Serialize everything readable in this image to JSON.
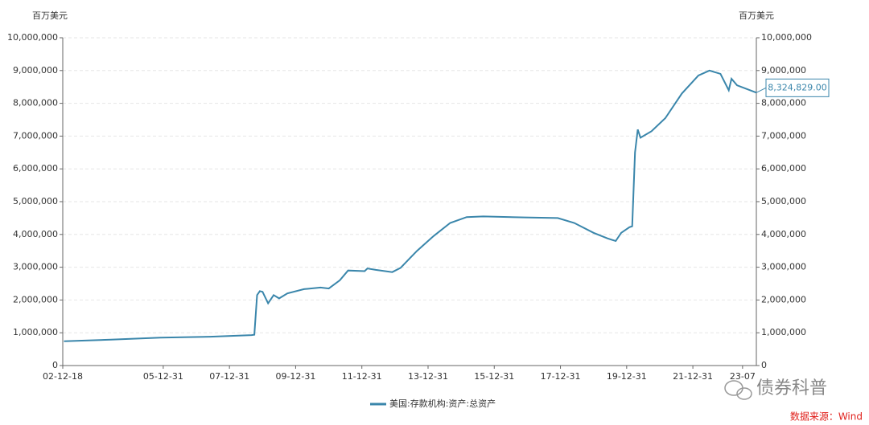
{
  "chart_data": {
    "type": "line",
    "y_label": "百万美元",
    "y2_label": "百万美元",
    "x": [
      "2003-01",
      "2004-06",
      "2005-12",
      "2007-06",
      "2008-09",
      "2008-10",
      "2008-11",
      "2008-12",
      "2009-01",
      "2009-03",
      "2009-05",
      "2009-07",
      "2009-10",
      "2010-04",
      "2010-10",
      "2011-01",
      "2011-05",
      "2011-08",
      "2012-02",
      "2012-03",
      "2012-06",
      "2012-12",
      "2013-03",
      "2013-09",
      "2014-03",
      "2014-09",
      "2015-03",
      "2015-09",
      "2016-12",
      "2017-12",
      "2018-06",
      "2019-01",
      "2019-06",
      "2019-09",
      "2019-11",
      "2020-02",
      "2020-03",
      "2020-04",
      "2020-05",
      "2020-06",
      "2020-10",
      "2021-03",
      "2021-09",
      "2022-03",
      "2022-07",
      "2022-11",
      "2023-02",
      "2023-03",
      "2023-05",
      "2023-12"
    ],
    "series": [
      {
        "name": "美国:存款机构:资产:总资产",
        "color": "#3a86ab",
        "values": [
          740000,
          790000,
          850000,
          880000,
          930000,
          940000,
          2150000,
          2270000,
          2250000,
          1900000,
          2150000,
          2050000,
          2200000,
          2330000,
          2380000,
          2350000,
          2600000,
          2900000,
          2880000,
          2960000,
          2920000,
          2850000,
          2980000,
          3500000,
          3950000,
          4350000,
          4530000,
          4550000,
          4520000,
          4500000,
          4350000,
          4050000,
          3880000,
          3800000,
          4050000,
          4220000,
          4250000,
          6500000,
          7200000,
          6950000,
          7150000,
          7550000,
          8300000,
          8850000,
          9000000,
          8900000,
          8400000,
          8750000,
          8550000,
          8324829
        ]
      }
    ],
    "annotation": {
      "x": "2023-12",
      "value": 8324829,
      "label": "8,324,829.00"
    },
    "xlim": [
      "2002-12-18",
      "2023-12"
    ],
    "xticks": [
      {
        "value": "2002-12-18",
        "label": "02-12-18"
      },
      {
        "value": "2005-12-31",
        "label": "05-12-31"
      },
      {
        "value": "2007-12-31",
        "label": "07-12-31"
      },
      {
        "value": "2009-12-31",
        "label": "09-12-31"
      },
      {
        "value": "2011-12-31",
        "label": "11-12-31"
      },
      {
        "value": "2013-12-31",
        "label": "13-12-31"
      },
      {
        "value": "2015-12-31",
        "label": "15-12-31"
      },
      {
        "value": "2017-12-31",
        "label": "17-12-31"
      },
      {
        "value": "2019-12-31",
        "label": "19-12-31"
      },
      {
        "value": "2021-12-31",
        "label": "21-12-31"
      },
      {
        "value": "2023-07",
        "label": "23-07"
      }
    ],
    "ylim": [
      0,
      10000000
    ],
    "yticks": [
      0,
      {
        "value": 1000000,
        "label": "1,000,000"
      },
      {
        "value": 2000000,
        "label": "2,000,000"
      },
      {
        "value": 3000000,
        "label": "3,000,000"
      },
      {
        "value": 4000000,
        "label": "4,000,000"
      },
      {
        "value": 5000000,
        "label": "5,000,000"
      },
      {
        "value": 6000000,
        "label": "6,000,000"
      },
      {
        "value": 7000000,
        "label": "7,000,000"
      },
      {
        "value": 8000000,
        "label": "8,000,000"
      },
      {
        "value": 9000000,
        "label": "9,000,000"
      },
      {
        "value": 10000000,
        "label": "10,000,000"
      }
    ],
    "y2lim": [
      0,
      10000000
    ],
    "y2ticks": [
      0,
      {
        "value": 1000000,
        "label": "1,000,000"
      },
      {
        "value": 2000000,
        "label": "2,000,000"
      },
      {
        "value": 3000000,
        "label": "3,000,000"
      },
      {
        "value": 4000000,
        "label": "4,000,000"
      },
      {
        "value": 5000000,
        "label": "5,000,000"
      },
      {
        "value": 6000000,
        "label": "6,000,000"
      },
      {
        "value": 7000000,
        "label": "7,000,000"
      },
      {
        "value": 8000000,
        "label": "8,000,000"
      },
      {
        "value": 9000000,
        "label": "9,000,000"
      },
      {
        "value": 10000000,
        "label": "10,000,000"
      }
    ],
    "grid": true,
    "legend": "bottom",
    "watermark": "债券科普",
    "source": "数据来源：Wind"
  }
}
